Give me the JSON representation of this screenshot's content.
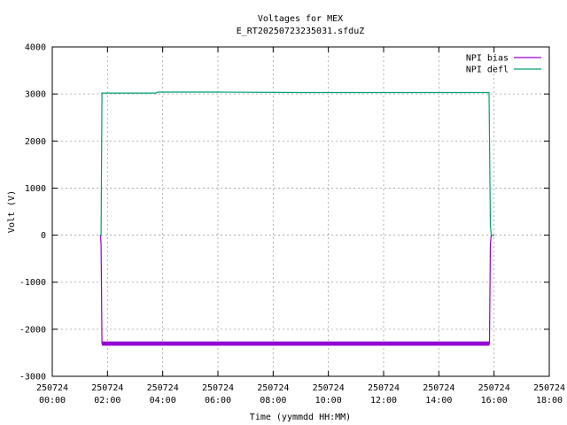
{
  "chart_data": {
    "type": "line",
    "title": "Voltages for MEX",
    "subtitle": "E_RT20250723235031.sfduZ",
    "xlabel": "Time (yymmdd HH:MM)",
    "ylabel": "Volt (V)",
    "xlim": [
      "250724 00:00",
      "250724 18:00"
    ],
    "ylim": [
      -3000,
      4000
    ],
    "xticks": [
      {
        "x": "00:00",
        "date": "250724",
        "time": "00:00"
      },
      {
        "x": "02:00",
        "date": "250724",
        "time": "02:00"
      },
      {
        "x": "04:00",
        "date": "250724",
        "time": "04:00"
      },
      {
        "x": "06:00",
        "date": "250724",
        "time": "06:00"
      },
      {
        "x": "08:00",
        "date": "250724",
        "time": "08:00"
      },
      {
        "x": "10:00",
        "date": "250724",
        "time": "10:00"
      },
      {
        "x": "12:00",
        "date": "250724",
        "time": "12:00"
      },
      {
        "x": "14:00",
        "date": "250724",
        "time": "14:00"
      },
      {
        "x": "16:00",
        "date": "250724",
        "time": "16:00"
      },
      {
        "x": "18:00",
        "date": "250724",
        "time": "18:00"
      }
    ],
    "yticks": [
      "-3000",
      "-2000",
      "-1000",
      "0",
      "1000",
      "2000",
      "3000",
      "4000"
    ],
    "grid": true,
    "legend_position": "top-right",
    "series": [
      {
        "name": "NPI bias",
        "color": "#9400d3",
        "points": [
          {
            "x": "01:43",
            "y": 0
          },
          {
            "x": "01:45",
            "y": 0
          },
          {
            "x": "01:46",
            "y": -200
          },
          {
            "x": "01:48",
            "y": -2300
          },
          {
            "x": "04:00",
            "y": -2310
          },
          {
            "x": "08:00",
            "y": -2310
          },
          {
            "x": "12:00",
            "y": -2310
          },
          {
            "x": "15:50",
            "y": -2300
          },
          {
            "x": "15:52",
            "y": -200
          },
          {
            "x": "15:54",
            "y": 0
          },
          {
            "x": "16:00",
            "y": 0
          }
        ],
        "band": [
          -2350,
          -2260
        ]
      },
      {
        "name": "NPI defl",
        "color": "#009e73",
        "points": [
          {
            "x": "01:43",
            "y": 0
          },
          {
            "x": "01:46",
            "y": 0
          },
          {
            "x": "01:48",
            "y": 3020
          },
          {
            "x": "03:45",
            "y": 3020
          },
          {
            "x": "03:50",
            "y": 3040
          },
          {
            "x": "06:00",
            "y": 3040
          },
          {
            "x": "09:00",
            "y": 3030
          },
          {
            "x": "12:00",
            "y": 3030
          },
          {
            "x": "15:49",
            "y": 3030
          },
          {
            "x": "15:52",
            "y": 200
          },
          {
            "x": "15:54",
            "y": 0
          },
          {
            "x": "16:00",
            "y": 0
          }
        ]
      }
    ]
  }
}
